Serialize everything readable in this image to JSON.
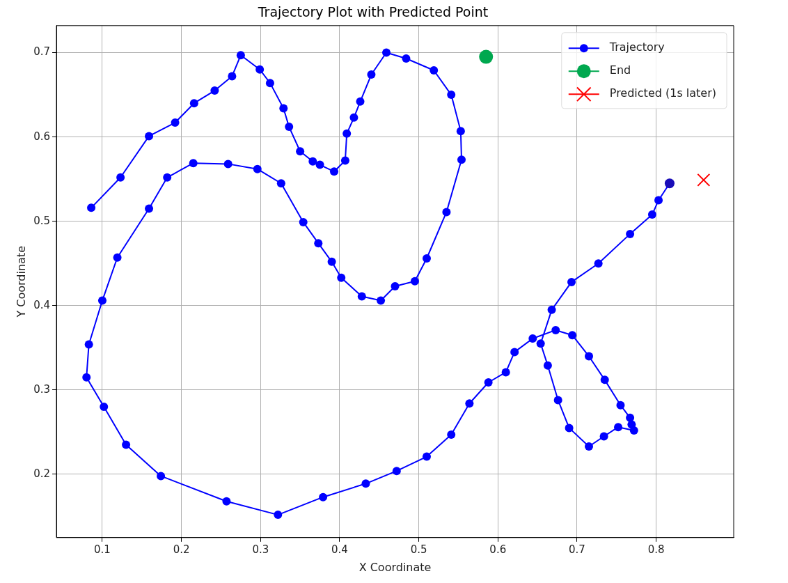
{
  "chart_data": {
    "type": "line",
    "title": "Trajectory Plot with Predicted Point",
    "xlabel": "X Coordinate",
    "ylabel": "Y Coordinate",
    "xlim": [
      0.042,
      0.898
    ],
    "ylim": [
      0.125,
      0.732
    ],
    "xticks": [
      0.1,
      0.2,
      0.3,
      0.4,
      0.5,
      0.6,
      0.7,
      0.8
    ],
    "yticks": [
      0.2,
      0.3,
      0.4,
      0.5,
      0.6,
      0.7
    ],
    "grid": true,
    "legend": "top right",
    "series": [
      {
        "name": "Trajectory",
        "type": "line",
        "marker": "circle",
        "color": "#0000ff",
        "x": [
          0.086,
          0.123,
          0.159,
          0.192,
          0.216,
          0.242,
          0.264,
          0.275,
          0.299,
          0.312,
          0.329,
          0.336,
          0.35,
          0.366,
          0.375,
          0.393,
          0.407,
          0.409,
          0.418,
          0.426,
          0.44,
          0.459,
          0.484,
          0.519,
          0.541,
          0.553,
          0.554,
          0.535,
          0.51,
          0.495,
          0.47,
          0.452,
          0.428,
          0.402,
          0.39,
          0.373,
          0.354,
          0.326,
          0.296,
          0.259,
          0.215,
          0.182,
          0.159,
          0.119,
          0.1,
          0.083,
          0.08,
          0.102,
          0.13,
          0.174,
          0.257,
          0.322,
          0.379,
          0.433,
          0.472,
          0.51,
          0.541,
          0.564,
          0.588,
          0.61,
          0.621,
          0.644,
          0.673,
          0.694,
          0.715,
          0.735,
          0.755,
          0.767,
          0.769,
          0.772,
          0.752,
          0.734,
          0.715,
          0.69,
          0.676,
          0.663,
          0.654,
          0.668,
          0.693,
          0.727,
          0.767,
          0.795,
          0.803,
          0.817
        ],
        "values": [
          0.516,
          0.552,
          0.601,
          0.617,
          0.64,
          0.655,
          0.672,
          0.697,
          0.68,
          0.664,
          0.634,
          0.612,
          0.583,
          0.571,
          0.567,
          0.559,
          0.572,
          0.604,
          0.623,
          0.642,
          0.674,
          0.7,
          0.693,
          0.679,
          0.65,
          0.607,
          0.573,
          0.511,
          0.456,
          0.429,
          0.423,
          0.406,
          0.411,
          0.433,
          0.452,
          0.474,
          0.499,
          0.545,
          0.562,
          0.568,
          0.569,
          0.552,
          0.515,
          0.457,
          0.406,
          0.354,
          0.315,
          0.28,
          0.235,
          0.198,
          0.168,
          0.152,
          0.173,
          0.189,
          0.204,
          0.221,
          0.247,
          0.284,
          0.309,
          0.321,
          0.345,
          0.361,
          0.371,
          0.365,
          0.34,
          0.312,
          0.282,
          0.267,
          0.259,
          0.252,
          0.256,
          0.245,
          0.233,
          0.255,
          0.288,
          0.329,
          0.355,
          0.395,
          0.428,
          0.45,
          0.485,
          0.508,
          0.525,
          0.545
        ]
      },
      {
        "type": "scatter",
        "marker": "circle",
        "color": "#1a0db8",
        "x": [
          0.817
        ],
        "values": [
          0.545
        ]
      },
      {
        "name": "End",
        "type": "scatter",
        "marker": "circle",
        "color": "#00a84f",
        "x": [
          0.585
        ],
        "values": [
          0.695
        ]
      },
      {
        "name": "Predicted (1s later)",
        "type": "scatter",
        "marker": "cross",
        "color": "#ff0000",
        "x": [
          0.86
        ],
        "values": [
          0.549
        ]
      }
    ]
  }
}
